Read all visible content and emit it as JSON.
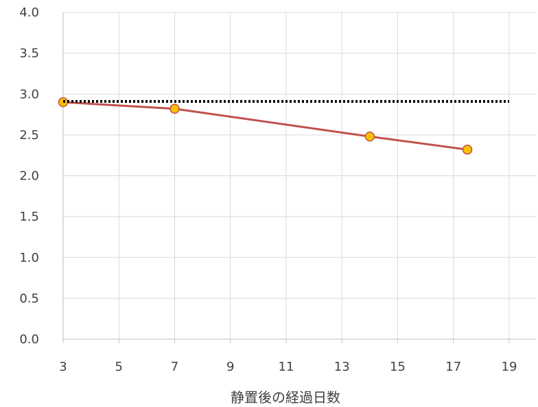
{
  "chart_data": {
    "type": "line",
    "title": "",
    "xlabel": "静置後の経過日数",
    "ylabel": "",
    "xlim": [
      3,
      19
    ],
    "ylim": [
      0.0,
      4.0
    ],
    "x_ticks": [
      "3",
      "5",
      "7",
      "9",
      "11",
      "13",
      "15",
      "17",
      "19"
    ],
    "y_ticks": [
      "0.0",
      "0.5",
      "1.0",
      "1.5",
      "2.0",
      "2.5",
      "3.0",
      "3.5",
      "4.0"
    ],
    "grid": true,
    "legend": "none",
    "series": [
      {
        "x": [
          3,
          7,
          14,
          17.5
        ],
        "y": [
          2.9,
          2.82,
          2.48,
          2.32
        ],
        "style": "solid",
        "line_color": "#c0504d",
        "marker_fill": "#ffc000",
        "marker_edge": "#c0504d"
      },
      {
        "x": [
          3,
          19
        ],
        "y": [
          2.91,
          2.91
        ],
        "style": "dotted",
        "line_color": "#000000"
      }
    ]
  }
}
